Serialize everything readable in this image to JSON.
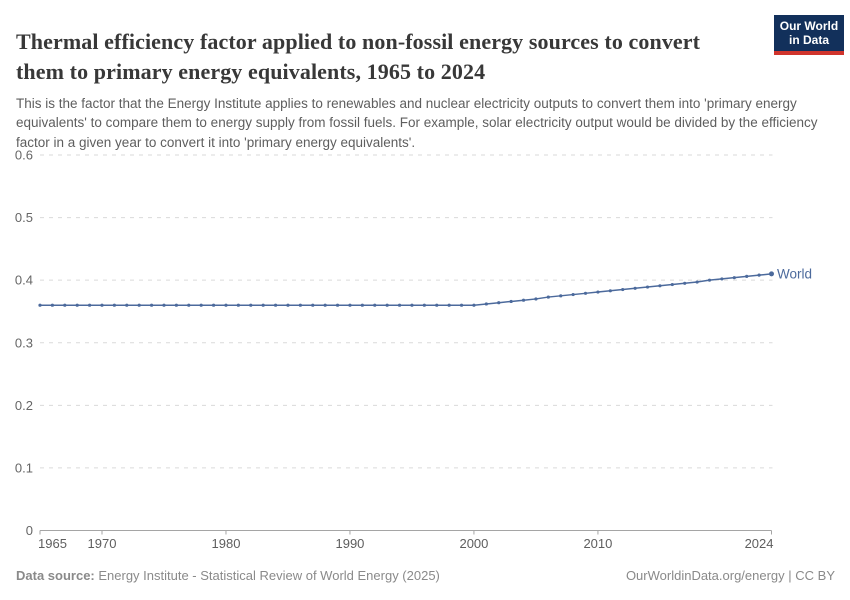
{
  "header": {
    "title": "Thermal efficiency factor applied to non-fossil energy sources to convert them to primary energy equivalents, 1965 to 2024",
    "subtitle": "This is the factor that the Energy Institute applies to renewables and nuclear electricity outputs to convert them into 'primary energy equivalents' to compare them to energy supply from fossil fuels. For example, solar electricity output would be divided by the efficiency factor in a given year to convert it into 'primary energy equivalents'.",
    "logo": {
      "line1": "Our World",
      "line2": "in Data",
      "bg_color": "#12305b",
      "accent_color": "#d0342c"
    }
  },
  "chart_data": {
    "type": "line",
    "title": "Thermal efficiency factor applied to non-fossil energy sources to convert them to primary energy equivalents, 1965 to 2024",
    "xlabel": "",
    "ylabel": "",
    "ylim": [
      0,
      0.6
    ],
    "yticks": [
      0,
      0.1,
      0.2,
      0.3,
      0.4,
      0.5,
      0.6
    ],
    "ytick_labels": [
      "0",
      "0.1",
      "0.2",
      "0.3",
      "0.4",
      "0.5",
      "0.6"
    ],
    "xticks": [
      1965,
      1970,
      1980,
      1990,
      2000,
      2010,
      2024
    ],
    "grid": "horizontal-dashed",
    "legend_position": "end-of-line-label",
    "colors": {
      "line": "#4c6a9c",
      "grid": "#dadada",
      "axis": "#a5a5a5",
      "ytick_text": "#666666",
      "xtick_text": "#5e5e5e"
    },
    "series": [
      {
        "name": "World",
        "color": "#4c6a9c",
        "x": [
          1965,
          1966,
          1967,
          1968,
          1969,
          1970,
          1971,
          1972,
          1973,
          1974,
          1975,
          1976,
          1977,
          1978,
          1979,
          1980,
          1981,
          1982,
          1983,
          1984,
          1985,
          1986,
          1987,
          1988,
          1989,
          1990,
          1991,
          1992,
          1993,
          1994,
          1995,
          1996,
          1997,
          1998,
          1999,
          2000,
          2001,
          2002,
          2003,
          2004,
          2005,
          2006,
          2007,
          2008,
          2009,
          2010,
          2011,
          2012,
          2013,
          2014,
          2015,
          2016,
          2017,
          2018,
          2019,
          2020,
          2021,
          2022,
          2023,
          2024
        ],
        "values": [
          0.36,
          0.36,
          0.36,
          0.36,
          0.36,
          0.36,
          0.36,
          0.36,
          0.36,
          0.36,
          0.36,
          0.36,
          0.36,
          0.36,
          0.36,
          0.36,
          0.36,
          0.36,
          0.36,
          0.36,
          0.36,
          0.36,
          0.36,
          0.36,
          0.36,
          0.36,
          0.36,
          0.36,
          0.36,
          0.36,
          0.36,
          0.36,
          0.36,
          0.36,
          0.36,
          0.36,
          0.362,
          0.364,
          0.366,
          0.368,
          0.37,
          0.373,
          0.375,
          0.377,
          0.379,
          0.381,
          0.383,
          0.385,
          0.387,
          0.389,
          0.391,
          0.393,
          0.395,
          0.397,
          0.4,
          0.402,
          0.404,
          0.406,
          0.408,
          0.41
        ]
      }
    ]
  },
  "footer": {
    "datasource_label": "Data source:",
    "datasource_value": " Energy Institute - Statistical Review of World Energy (2025)",
    "rights": "OurWorldinData.org/energy | CC BY"
  }
}
